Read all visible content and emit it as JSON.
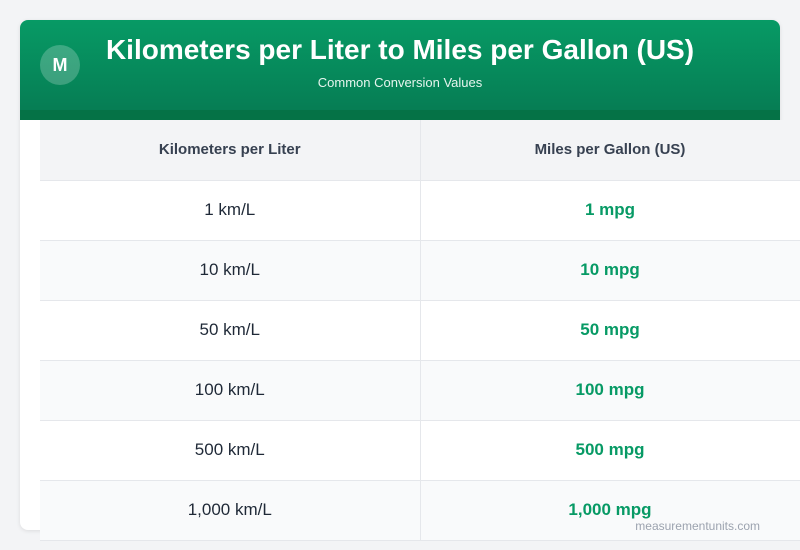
{
  "header": {
    "logo_letter": "M",
    "title": "Kilometers per Liter to Miles per Gallon (US)",
    "subtitle": "Common Conversion Values"
  },
  "table": {
    "columns": [
      "Kilometers per Liter",
      "Miles per Gallon (US)"
    ],
    "rows": [
      {
        "km": "1 km/L",
        "mpg": "1 mpg"
      },
      {
        "km": "10 km/L",
        "mpg": "10 mpg"
      },
      {
        "km": "50 km/L",
        "mpg": "50 mpg"
      },
      {
        "km": "100 km/L",
        "mpg": "100 mpg"
      },
      {
        "km": "500 km/L",
        "mpg": "500 mpg"
      },
      {
        "km": "1,000 km/L",
        "mpg": "1,000 mpg"
      }
    ]
  },
  "footer": {
    "text": "measurementunits.com"
  },
  "colors": {
    "accent": "#079a65",
    "header_dark": "#067a52"
  }
}
